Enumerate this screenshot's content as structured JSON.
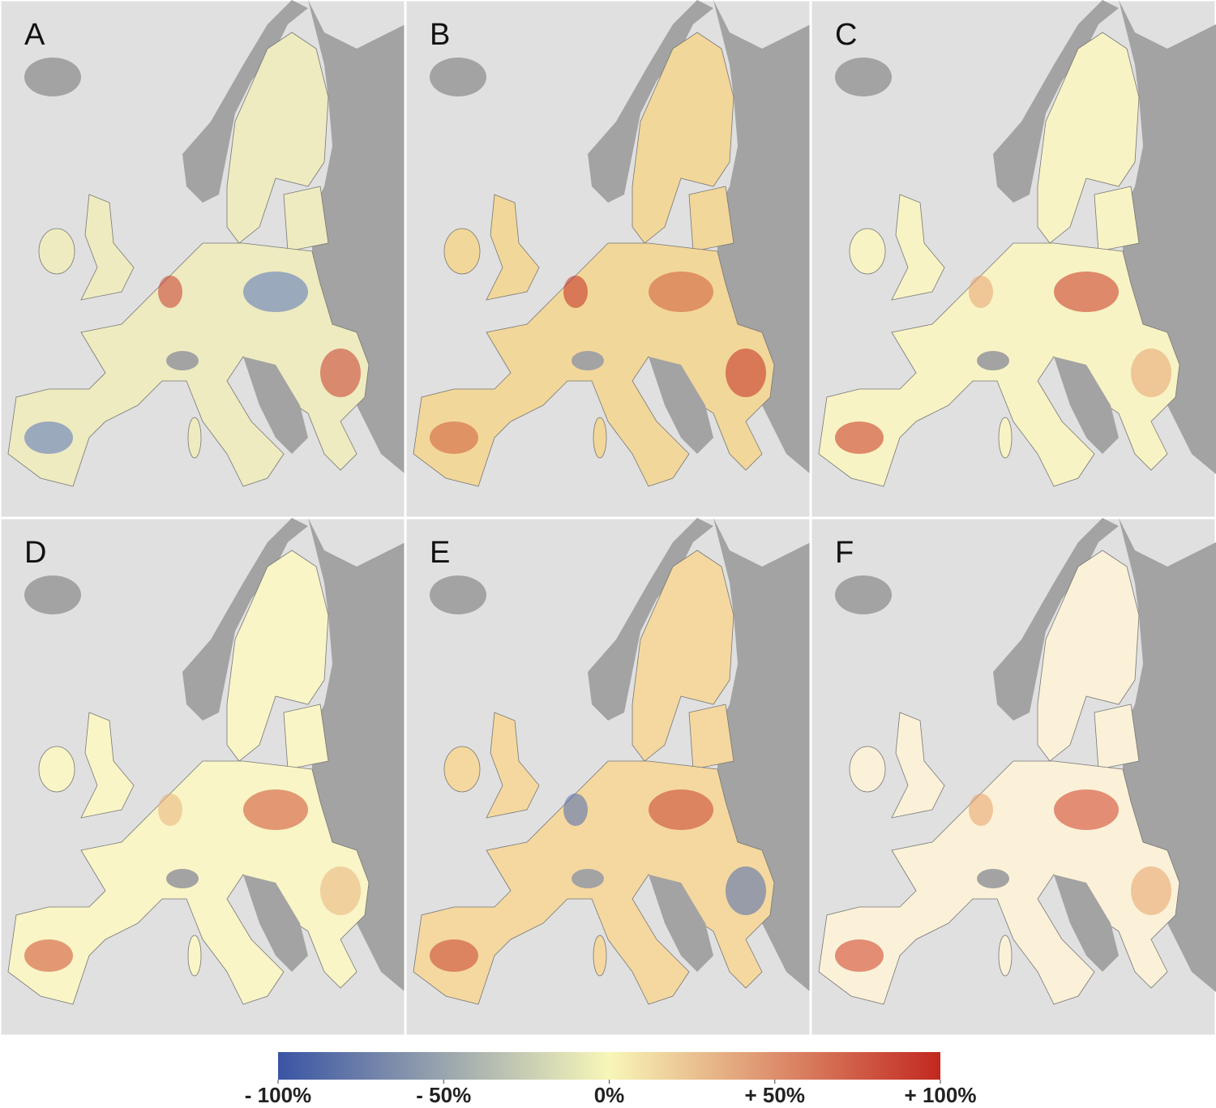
{
  "panels": [
    {
      "label": "A"
    },
    {
      "label": "B"
    },
    {
      "label": "C"
    },
    {
      "label": "D"
    },
    {
      "label": "E"
    },
    {
      "label": "F"
    }
  ],
  "colorbar": {
    "lim": [
      -100,
      100
    ],
    "colors": [
      "#3a54a4",
      "#f8f6b8",
      "#c2281f"
    ],
    "ticks": [
      {
        "value": -100,
        "label": "- 100%"
      },
      {
        "value": -50,
        "label": "- 50%"
      },
      {
        "value": 0,
        "label": "0%"
      },
      {
        "value": 50,
        "label": "+ 50%"
      },
      {
        "value": 100,
        "label": "+ 100%"
      }
    ]
  }
}
